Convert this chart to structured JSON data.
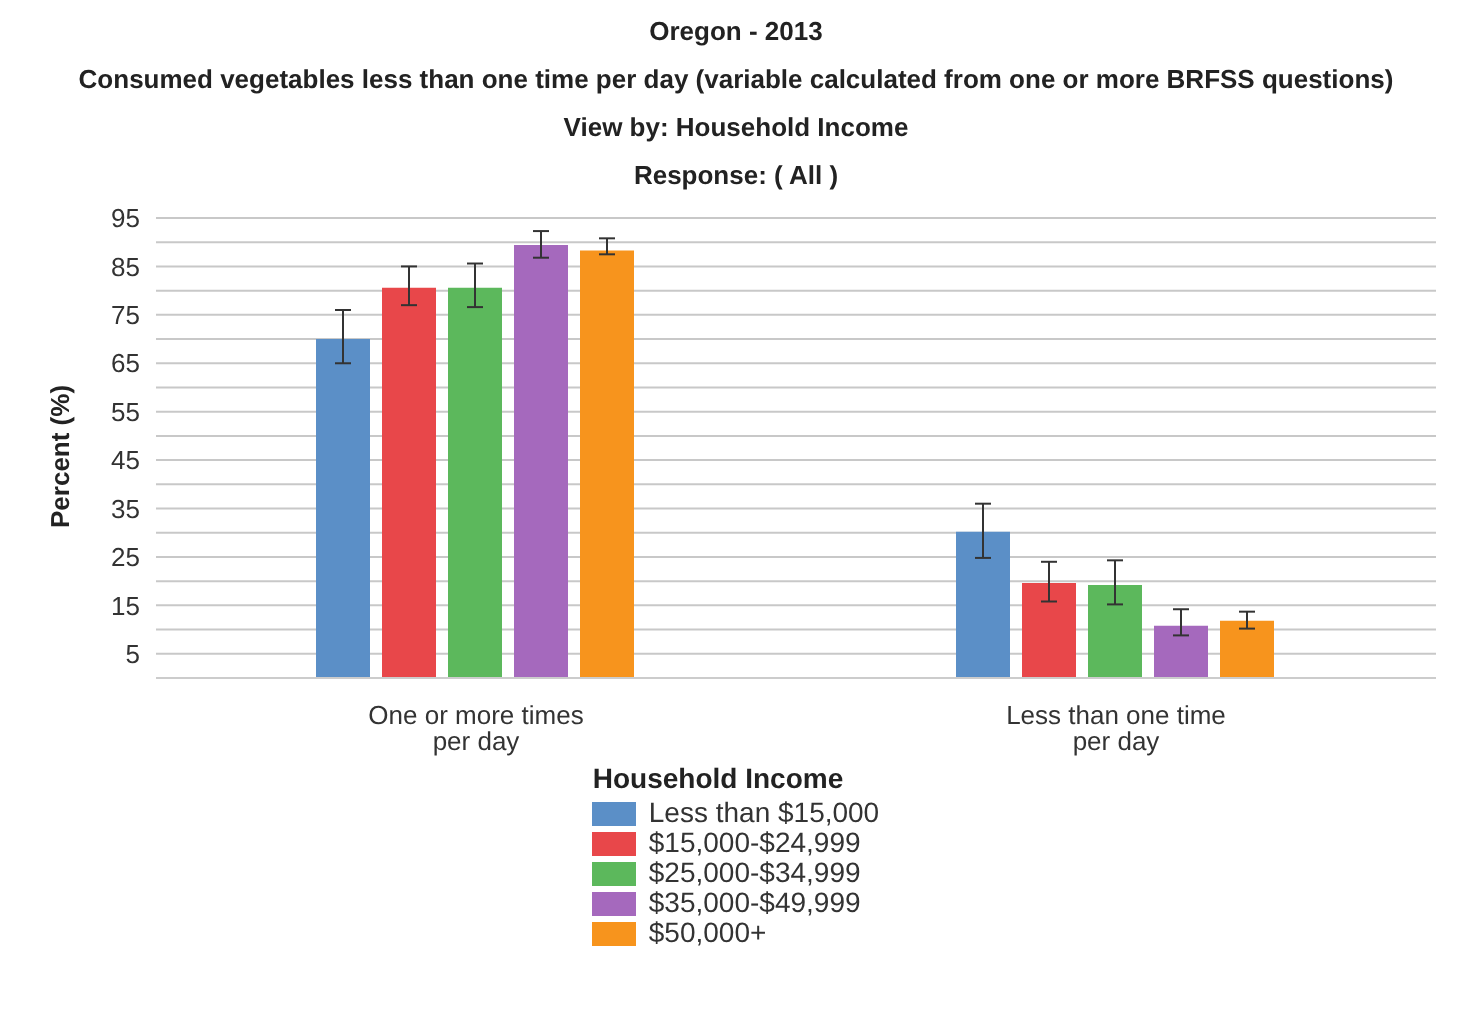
{
  "chart_data": {
    "type": "bar",
    "title": "Oregon - 2013",
    "subtitle": "Consumed vegetables less than one time per day (variable calculated from one or more BRFSS questions)",
    "annotations": [
      "View by: Household Income",
      "Response: ( All )"
    ],
    "ylabel": "Percent (%)",
    "legend_title": "Household Income",
    "categories": [
      "One or more times per day",
      "Less than one time per day"
    ],
    "series": [
      {
        "name": "Less than $15,000",
        "color": "#5b8fc7",
        "values": [
          70,
          30.2
        ],
        "errors": [
          [
            65,
            76
          ],
          [
            24.8,
            36
          ]
        ]
      },
      {
        "name": "$15,000-$24,999",
        "color": "#e8474a",
        "values": [
          80.6,
          19.6
        ],
        "errors": [
          [
            77,
            85
          ],
          [
            15.8,
            24
          ]
        ]
      },
      {
        "name": "$25,000-$34,999",
        "color": "#5cb85c",
        "values": [
          80.6,
          19.2
        ],
        "errors": [
          [
            76.6,
            85.6
          ],
          [
            15.2,
            24.3
          ]
        ]
      },
      {
        "name": "$35,000-$49,999",
        "color": "#a569bd",
        "values": [
          89.4,
          10.8
        ],
        "errors": [
          [
            86.8,
            92.3
          ],
          [
            8.8,
            14.2
          ]
        ]
      },
      {
        "name": "$50,000+",
        "color": "#f7941d",
        "values": [
          88.3,
          11.8
        ],
        "errors": [
          [
            87.5,
            90.8
          ],
          [
            10.2,
            13.7
          ]
        ]
      }
    ],
    "ylim": [
      0,
      95
    ],
    "yticks": [
      5,
      {
        "value": 10,
        "label": null
      },
      15,
      {
        "value": 20,
        "label": null
      },
      25,
      {
        "value": 30,
        "label": null
      },
      35,
      {
        "value": 40,
        "label": null
      },
      45,
      {
        "value": 50,
        "label": null
      },
      55,
      {
        "value": 60,
        "label": null
      },
      65,
      {
        "value": 70,
        "label": null
      },
      75,
      {
        "value": 80,
        "label": null
      },
      85,
      {
        "value": 90,
        "label": null
      },
      95
    ],
    "grid": "y",
    "legend": "bottom"
  }
}
